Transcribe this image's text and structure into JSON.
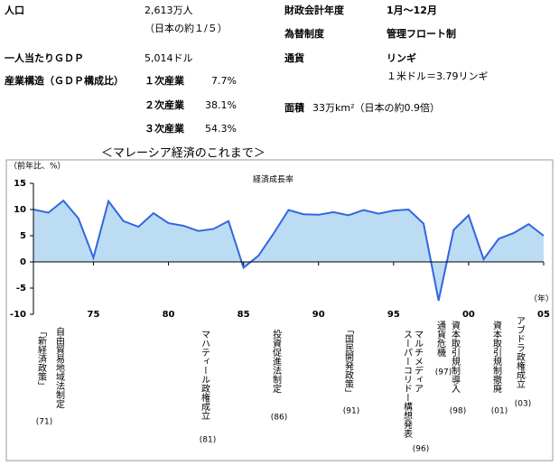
{
  "info": {
    "population": {
      "label": "人口",
      "value": "2,613万人",
      "note": "（日本の約１/５）"
    },
    "gdp_per_capita": {
      "label": "一人当たりＧＤＰ",
      "value": "5,014ドル"
    },
    "industry": {
      "label": "産業構造（ＧＤＰ構成比）",
      "rows": [
        {
          "name": "１次産業",
          "share": "7.7%"
        },
        {
          "name": "２次産業",
          "share": "38.1%"
        },
        {
          "name": "３次産業",
          "share": "54.3%"
        }
      ]
    },
    "fiscal_year": {
      "label": "財政会計年度",
      "value": "1月～12月"
    },
    "exchange": {
      "label": "為替制度",
      "value": "管理フロート制"
    },
    "currency": {
      "label": "通貨",
      "value": "リンギ",
      "note": "１米ドル＝3.79リンギ"
    },
    "area": {
      "label": "面積",
      "value": "33万km²（日本の約0.9倍）"
    }
  },
  "chart_data": {
    "type": "area",
    "title": "＜マレーシア経済のこれまで＞",
    "y_label": "（前年比、%）",
    "x_label": "（年）",
    "x": [
      1971,
      1972,
      1973,
      1974,
      1975,
      1976,
      1977,
      1978,
      1979,
      1980,
      1981,
      1982,
      1983,
      1984,
      1985,
      1986,
      1987,
      1988,
      1989,
      1990,
      1991,
      1992,
      1993,
      1994,
      1995,
      1996,
      1997,
      1998,
      1999,
      2000,
      2001,
      2002,
      2003,
      2004,
      2005
    ],
    "series": [
      {
        "name": "経済成長率",
        "color": "#3366dd",
        "fill": "#bcdcf4",
        "values": [
          10.0,
          9.4,
          11.7,
          8.3,
          0.8,
          11.6,
          7.8,
          6.7,
          9.3,
          7.4,
          6.9,
          5.9,
          6.3,
          7.8,
          -1.1,
          1.2,
          5.4,
          9.9,
          9.1,
          9.0,
          9.5,
          8.9,
          9.9,
          9.2,
          9.8,
          10.0,
          7.3,
          -7.4,
          6.1,
          8.9,
          0.5,
          4.4,
          5.5,
          7.2,
          5.0
        ]
      }
    ],
    "xlim": [
      1971,
      2005
    ],
    "xticks": [
      {
        "value": 1975,
        "label": "75"
      },
      {
        "value": 1980,
        "label": "80"
      },
      {
        "value": 1985,
        "label": "85"
      },
      {
        "value": 1990,
        "label": "90"
      },
      {
        "value": 1995,
        "label": "95"
      },
      {
        "value": 2000,
        "label": "00"
      },
      {
        "value": 2005,
        "label": "05"
      }
    ],
    "ylim": [
      -10,
      15
    ],
    "yticks": [
      -10,
      -5,
      0,
      5,
      10,
      15
    ],
    "grid": false,
    "annotations": [
      {
        "lines": [
          "「新経済政策」"
        ],
        "year": "(71)"
      },
      {
        "lines": [
          "自由貿易地域法制定"
        ]
      },
      {
        "lines": [
          "マハティール政権成立"
        ],
        "year": "(81)"
      },
      {
        "lines": [
          "投資促進法制定"
        ],
        "year": "(86)"
      },
      {
        "lines": [
          "「国民開発政策」"
        ],
        "year": "(91)"
      },
      {
        "lines": [
          "マルチメディア",
          "スーパーコリドー構想発表"
        ],
        "year": "(96)"
      },
      {
        "lines": [
          "通貨危機"
        ],
        "year": "(97)"
      },
      {
        "lines": [
          "資本取引規制導入"
        ],
        "year": "(98)"
      },
      {
        "lines": [
          "資本取引規制撤廃"
        ],
        "year": "(01)"
      },
      {
        "lines": [
          "アブドラ政権成立"
        ],
        "year": "(03)"
      }
    ]
  }
}
